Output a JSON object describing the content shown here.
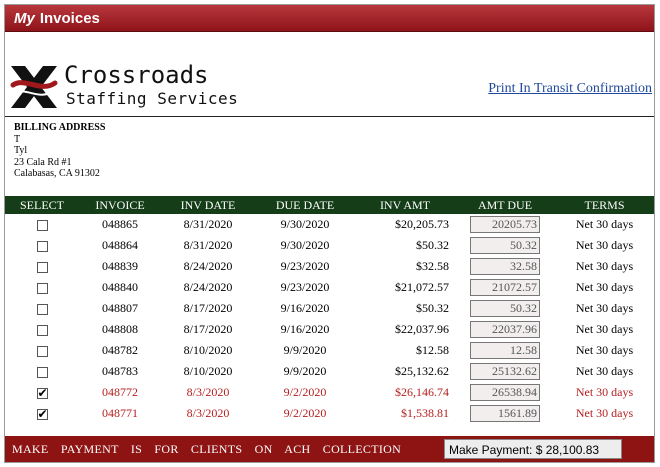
{
  "header": {
    "title_my": "My",
    "title_rest": "Invoices"
  },
  "brand": {
    "line1": "Crossroads",
    "line2": "Staffing Services"
  },
  "print_link": "Print In Transit Confirmation",
  "billing": {
    "heading": "BILLING ADDRESS",
    "line1": "T",
    "line2": "Tyl",
    "line3": "23 Cala Rd #1",
    "line4": "Calabasas, CA 91302"
  },
  "table": {
    "headers": [
      "SELECT",
      "INVOICE",
      "INV DATE",
      "DUE DATE",
      "INV AMT",
      "AMT DUE",
      "TERMS"
    ],
    "rows": [
      {
        "invoice": "048865",
        "inv_date": "8/31/2020",
        "due_date": "9/30/2020",
        "inv_amt": "$20,205.73",
        "amt_due": "20205.73",
        "terms": "Net 30 days",
        "checked": false
      },
      {
        "invoice": "048864",
        "inv_date": "8/31/2020",
        "due_date": "9/30/2020",
        "inv_amt": "$50.32",
        "amt_due": "50.32",
        "terms": "Net 30 days",
        "checked": false
      },
      {
        "invoice": "048839",
        "inv_date": "8/24/2020",
        "due_date": "9/23/2020",
        "inv_amt": "$32.58",
        "amt_due": "32.58",
        "terms": "Net 30 days",
        "checked": false
      },
      {
        "invoice": "048840",
        "inv_date": "8/24/2020",
        "due_date": "9/23/2020",
        "inv_amt": "$21,072.57",
        "amt_due": "21072.57",
        "terms": "Net 30 days",
        "checked": false
      },
      {
        "invoice": "048807",
        "inv_date": "8/17/2020",
        "due_date": "9/16/2020",
        "inv_amt": "$50.32",
        "amt_due": "50.32",
        "terms": "Net 30 days",
        "checked": false
      },
      {
        "invoice": "048808",
        "inv_date": "8/17/2020",
        "due_date": "9/16/2020",
        "inv_amt": "$22,037.96",
        "amt_due": "22037.96",
        "terms": "Net 30 days",
        "checked": false
      },
      {
        "invoice": "048782",
        "inv_date": "8/10/2020",
        "due_date": "9/9/2020",
        "inv_amt": "$12.58",
        "amt_due": "12.58",
        "terms": "Net 30 days",
        "checked": false
      },
      {
        "invoice": "048783",
        "inv_date": "8/10/2020",
        "due_date": "9/9/2020",
        "inv_amt": "$25,132.62",
        "amt_due": "25132.62",
        "terms": "Net 30 days",
        "checked": false
      },
      {
        "invoice": "048772",
        "inv_date": "8/3/2020",
        "due_date": "9/2/2020",
        "inv_amt": "$26,146.74",
        "amt_due": "26538.94",
        "terms": "Net 30 days",
        "checked": true
      },
      {
        "invoice": "048771",
        "inv_date": "8/3/2020",
        "due_date": "9/2/2020",
        "inv_amt": "$1,538.81",
        "amt_due": "1561.89",
        "terms": "Net 30 days",
        "checked": true
      }
    ]
  },
  "footer": {
    "message": "MAKE PAYMENT IS FOR CLIENTS ON ACH COLLECTION",
    "pay_button": "Make Payment: $ 28,100.83"
  },
  "colors": {
    "title_red": "#9e1f24",
    "header_green": "#143d18",
    "footer_red": "#8e1414",
    "selected_text": "#b51e1e",
    "link_blue": "#1f4a9b"
  }
}
